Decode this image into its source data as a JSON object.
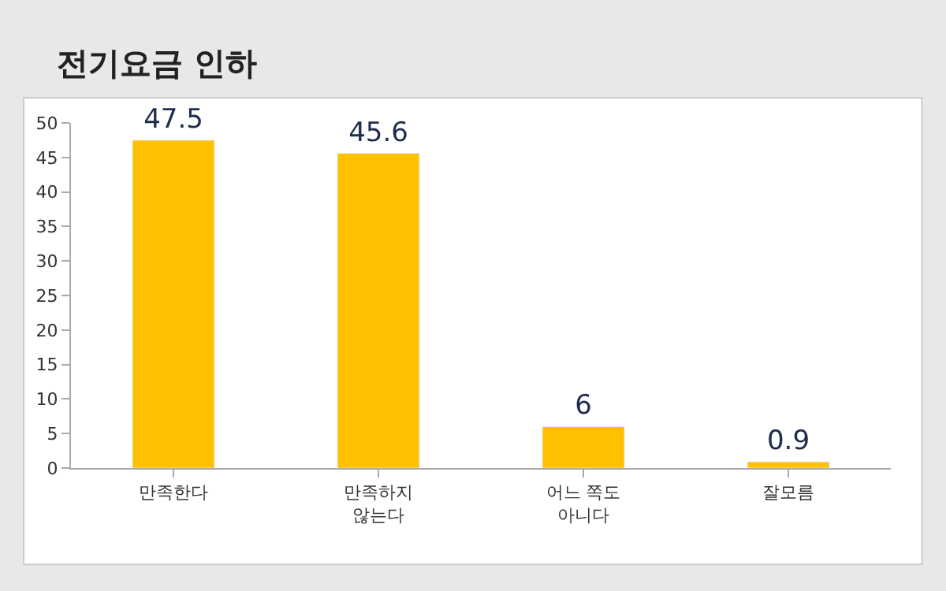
{
  "chart_data": {
    "type": "bar",
    "title": "전기요금 인하",
    "categories": [
      "만족한다",
      "만족하지\n않는다",
      "어느 쪽도\n아니다",
      "잘모름"
    ],
    "values": [
      47.5,
      45.6,
      6,
      0.9
    ],
    "color": "#ffc000",
    "ylim": [
      0,
      50
    ],
    "yticks": [
      0,
      5,
      10,
      15,
      20,
      25,
      30,
      35,
      40,
      45,
      50
    ],
    "data_labels": true
  }
}
